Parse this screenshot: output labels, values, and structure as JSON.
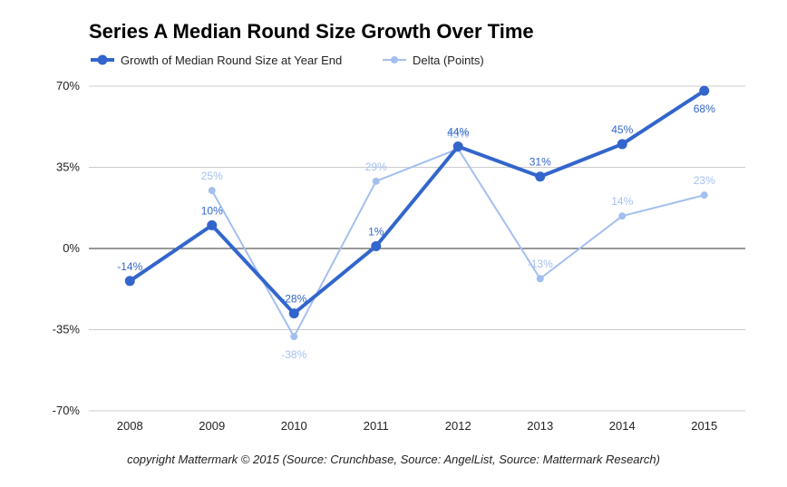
{
  "chart_data": {
    "type": "line",
    "title": "Series A Median Round Size Growth Over Time",
    "categories": [
      "2008",
      "2009",
      "2010",
      "2011",
      "2012",
      "2013",
      "2014",
      "2015"
    ],
    "ylim": [
      -70,
      70
    ],
    "yticks": [
      70,
      35,
      0,
      -35,
      -70
    ],
    "ytick_labels": [
      "70%",
      "35%",
      "0%",
      "-35%",
      "-70%"
    ],
    "grid": true,
    "legend_position": "top-left",
    "series": [
      {
        "name": "Growth of Median Round Size at Year End",
        "color": "#3366cc",
        "values": [
          -14,
          10,
          -28,
          1,
          44,
          31,
          45,
          68
        ],
        "labels": [
          "-14%",
          "10%",
          "-28%",
          "1%",
          "44%",
          "31%",
          "45%",
          "68%"
        ]
      },
      {
        "name": "Delta (Points)",
        "color": "#a3bff0",
        "values": [
          null,
          25,
          -38,
          29,
          43,
          -13,
          14,
          23
        ],
        "labels": [
          "",
          "25%",
          "-38%",
          "29%",
          "43%",
          "-13%",
          "14%",
          "23%"
        ]
      }
    ]
  },
  "footer": "copyright Mattermark © 2015 (Source: Crunchbase, Source: AngelList, Source: Mattermark Research)"
}
